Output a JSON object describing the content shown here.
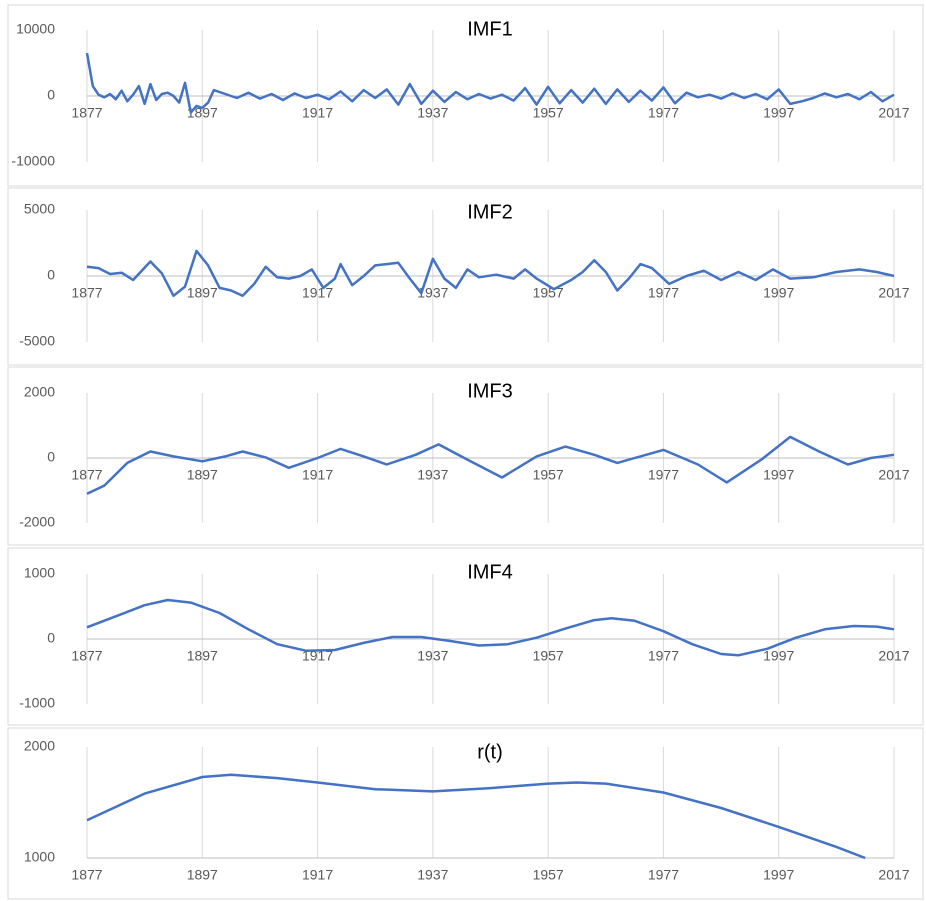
{
  "chart_data": [
    {
      "type": "line",
      "title": "IMF1",
      "color": "#4472c4",
      "grid": true,
      "xlim": [
        1877,
        2017
      ],
      "xticks": [
        1877,
        1897,
        1917,
        1937,
        1957,
        1977,
        1997,
        2017
      ],
      "ylim": [
        -10000,
        10000
      ],
      "yticks": [
        -10000,
        0,
        10000
      ],
      "x": [
        1877,
        1878,
        1879,
        1880,
        1881,
        1882,
        1883,
        1884,
        1885,
        1886,
        1887,
        1888,
        1889,
        1890,
        1891,
        1892,
        1893,
        1894,
        1895,
        1896,
        1897,
        1898,
        1899,
        1901,
        1903,
        1905,
        1907,
        1909,
        1911,
        1913,
        1915,
        1917,
        1919,
        1921,
        1923,
        1925,
        1927,
        1929,
        1931,
        1933,
        1935,
        1937,
        1939,
        1941,
        1943,
        1945,
        1947,
        1949,
        1951,
        1953,
        1955,
        1957,
        1959,
        1961,
        1963,
        1965,
        1967,
        1969,
        1971,
        1973,
        1975,
        1977,
        1979,
        1981,
        1983,
        1985,
        1987,
        1989,
        1991,
        1993,
        1995,
        1997,
        1999,
        2001,
        2003,
        2005,
        2007,
        2009,
        2011,
        2013,
        2015,
        2017
      ],
      "values": [
        6500,
        1500,
        200,
        -200,
        300,
        -500,
        800,
        -800,
        200,
        1500,
        -1200,
        1800,
        -600,
        300,
        500,
        0,
        -1000,
        2000,
        -2500,
        -1500,
        -1800,
        -1000,
        900,
        300,
        -300,
        500,
        -400,
        300,
        -600,
        400,
        -300,
        200,
        -500,
        700,
        -800,
        900,
        -300,
        1000,
        -1300,
        1800,
        -1200,
        800,
        -900,
        600,
        -500,
        300,
        -400,
        200,
        -700,
        1200,
        -1300,
        1400,
        -1100,
        900,
        -1000,
        1100,
        -1200,
        1000,
        -900,
        800,
        -700,
        1300,
        -1100,
        500,
        -200,
        200,
        -400,
        400,
        -300,
        300,
        -500,
        1000,
        -1200,
        -800,
        -300,
        400,
        -200,
        300,
        -500,
        600,
        -800,
        200
      ]
    },
    {
      "type": "line",
      "title": "IMF2",
      "color": "#4472c4",
      "grid": true,
      "xlim": [
        1877,
        2017
      ],
      "xticks": [
        1877,
        1897,
        1917,
        1937,
        1957,
        1977,
        1997,
        2017
      ],
      "ylim": [
        -5000,
        5000
      ],
      "yticks": [
        -5000,
        0,
        5000
      ],
      "x": [
        1877,
        1879,
        1881,
        1883,
        1885,
        1888,
        1890,
        1892,
        1894,
        1896,
        1898,
        1900,
        1902,
        1904,
        1906,
        1908,
        1910,
        1912,
        1914,
        1916,
        1918,
        1920,
        1921,
        1923,
        1925,
        1927,
        1929,
        1931,
        1933,
        1935,
        1937,
        1939,
        1941,
        1943,
        1945,
        1948,
        1951,
        1953,
        1955,
        1958,
        1961,
        1963,
        1965,
        1967,
        1969,
        1971,
        1973,
        1975,
        1978,
        1981,
        1984,
        1987,
        1990,
        1993,
        1996,
        1999,
        2003,
        2007,
        2011,
        2014,
        2017
      ],
      "values": [
        700,
        600,
        150,
        250,
        -300,
        1100,
        200,
        -1500,
        -800,
        1900,
        800,
        -900,
        -1100,
        -1500,
        -600,
        700,
        -100,
        -200,
        0,
        500,
        -900,
        -200,
        900,
        -700,
        0,
        800,
        900,
        1000,
        -200,
        -1300,
        1300,
        -200,
        -900,
        500,
        -100,
        100,
        -200,
        500,
        -200,
        -1000,
        -300,
        300,
        1200,
        300,
        -1100,
        -200,
        900,
        600,
        -600,
        0,
        400,
        -300,
        300,
        -300,
        500,
        -200,
        -100,
        300,
        500,
        300,
        0
      ]
    },
    {
      "type": "line",
      "title": "IMF3",
      "color": "#4472c4",
      "grid": true,
      "xlim": [
        1877,
        2017
      ],
      "xticks": [
        1877,
        1897,
        1917,
        1937,
        1957,
        1977,
        1997,
        2017
      ],
      "ylim": [
        -2000,
        2000
      ],
      "yticks": [
        -2000,
        0,
        2000
      ],
      "x": [
        1877,
        1880,
        1884,
        1888,
        1892,
        1897,
        1901,
        1904,
        1908,
        1912,
        1917,
        1921,
        1925,
        1929,
        1934,
        1938,
        1943,
        1949,
        1955,
        1960,
        1965,
        1969,
        1973,
        1977,
        1983,
        1988,
        1994,
        1999,
        2004,
        2009,
        2013,
        2017
      ],
      "values": [
        -1100,
        -850,
        -150,
        200,
        50,
        -100,
        50,
        200,
        20,
        -300,
        0,
        280,
        50,
        -200,
        100,
        420,
        -50,
        -600,
        50,
        350,
        100,
        -150,
        50,
        250,
        -200,
        -750,
        -50,
        650,
        200,
        -200,
        0,
        100
      ]
    },
    {
      "type": "line",
      "title": "IMF4",
      "color": "#4472c4",
      "grid": true,
      "xlim": [
        1877,
        2017
      ],
      "xticks": [
        1877,
        1897,
        1917,
        1937,
        1957,
        1977,
        1997,
        2017
      ],
      "ylim": [
        -1000,
        1000
      ],
      "yticks": [
        -1000,
        0,
        1000
      ],
      "x": [
        1877,
        1882,
        1887,
        1891,
        1895,
        1900,
        1905,
        1910,
        1915,
        1920,
        1925,
        1930,
        1935,
        1940,
        1945,
        1950,
        1955,
        1960,
        1965,
        1968,
        1972,
        1977,
        1982,
        1987,
        1990,
        1995,
        2000,
        2005,
        2010,
        2014,
        2017
      ],
      "values": [
        180,
        350,
        520,
        600,
        560,
        400,
        150,
        -80,
        -180,
        -170,
        -60,
        30,
        30,
        -30,
        -100,
        -80,
        20,
        160,
        290,
        320,
        280,
        120,
        -80,
        -230,
        -250,
        -150,
        20,
        150,
        200,
        190,
        150
      ]
    },
    {
      "type": "line",
      "title": "r(t)",
      "color": "#4472c4",
      "grid": true,
      "xlim": [
        1877,
        2017
      ],
      "xticks": [
        1877,
        1897,
        1917,
        1937,
        1957,
        1977,
        1997,
        2017
      ],
      "ylim": [
        1000,
        2000
      ],
      "yticks": [
        1000,
        2000
      ],
      "x": [
        1877,
        1887,
        1897,
        1902,
        1910,
        1917,
        1927,
        1937,
        1947,
        1957,
        1962,
        1967,
        1977,
        1987,
        1997,
        2007,
        2012
      ],
      "values": [
        1340,
        1580,
        1730,
        1750,
        1720,
        1680,
        1620,
        1600,
        1630,
        1670,
        1680,
        1670,
        1590,
        1450,
        1280,
        1100,
        1000
      ]
    }
  ]
}
